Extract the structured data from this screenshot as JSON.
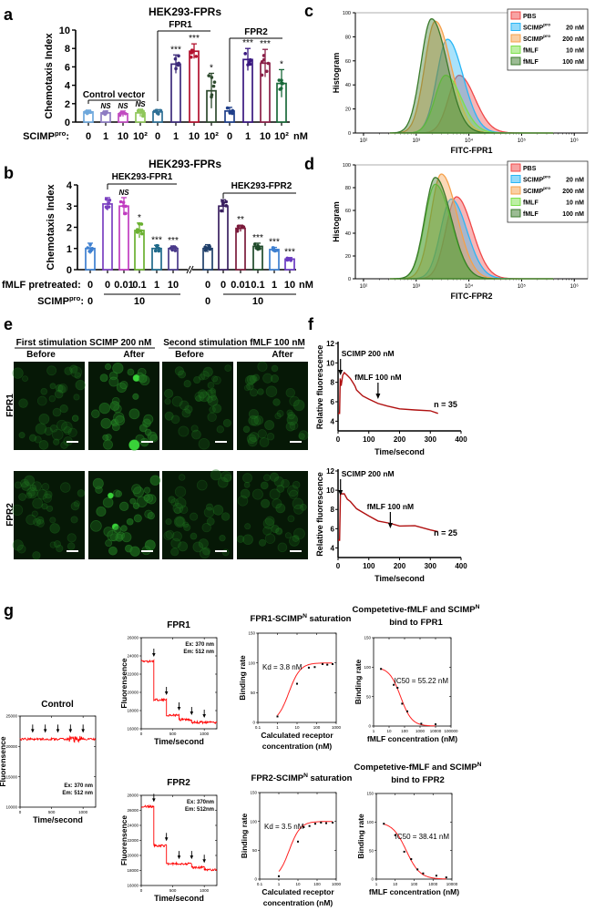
{
  "panels": {
    "a": "a",
    "b": "b",
    "c": "c",
    "d": "d",
    "e": "e",
    "f": "f",
    "g": "g"
  },
  "microscopy": {
    "headers": [
      "First stimulation SCIMP 200 nM",
      "Second stimulation fMLF 100 nM"
    ],
    "columns": [
      "Before",
      "After",
      "Before",
      "After"
    ],
    "rows": [
      "FPR1",
      "FPR2"
    ]
  },
  "chart_data": [
    {
      "id": "a",
      "type": "bar",
      "title": "HEK293-FPRs",
      "ylabel": "Chemotaxis Index",
      "ylim": [
        0,
        10
      ],
      "yticks": [
        0,
        2,
        4,
        6,
        8,
        10
      ],
      "row_label": "SCIMP",
      "row_label_sup": "pro",
      "row_label_end": ":",
      "unit": "nM",
      "categories": [
        "0",
        "1",
        "10",
        "10²",
        "0",
        "1",
        "10",
        "10²",
        "0",
        "1",
        "10",
        "10²"
      ],
      "groups": [
        {
          "label": "Control vector"
        },
        {
          "label": "FPR1"
        },
        {
          "label": "FPR2"
        }
      ],
      "values": [
        1.1,
        1.0,
        0.9,
        1.0,
        1.1,
        6.3,
        7.7,
        3.4,
        1.2,
        6.8,
        6.4,
        4.2
      ],
      "sd": [
        0.2,
        0.2,
        0.3,
        0.4,
        0.25,
        1.0,
        0.8,
        1.9,
        0.4,
        1.2,
        1.5,
        1.5
      ],
      "significance": [
        "",
        "NS",
        "NS",
        "NS",
        "",
        "***",
        "***",
        "*",
        "",
        "***",
        "***",
        "*"
      ],
      "colors": [
        "#6fa8dc",
        "#8e7cc3",
        "#c04bc0",
        "#8fc75a",
        "#2e6f95",
        "#3d2b7a",
        "#b3122e",
        "#2d4a2d",
        "#1f3f8a",
        "#3a1880",
        "#8a2048",
        "#1a6a3a"
      ]
    },
    {
      "id": "b",
      "type": "bar",
      "title": "HEK293-FPRs",
      "ylabel": "Chemotaxis Index",
      "ylim": [
        0,
        4
      ],
      "yticks": [
        0,
        1,
        2,
        3,
        4
      ],
      "groups": [
        {
          "label": "HEK293-FPR1"
        },
        {
          "label": "HEK293-FPR2"
        }
      ],
      "row1_label": "fMLF pretreated:",
      "row1_values": [
        "0",
        "0",
        "0.01",
        "0.1",
        "1",
        "10",
        "0",
        "0",
        "0.01",
        "0.1",
        "1",
        "10"
      ],
      "row2_label": "SCIMP",
      "row2_label_sup": "pro",
      "row2_label_end": ":",
      "row2_values": [
        "0",
        "10",
        "0",
        "10"
      ],
      "unit": "nM",
      "values": [
        1.0,
        3.1,
        3.0,
        1.85,
        1.0,
        1.0,
        1.0,
        3.0,
        1.95,
        1.1,
        0.95,
        0.5
      ],
      "sd": [
        0.25,
        0.3,
        0.4,
        0.35,
        0.15,
        0.12,
        0.18,
        0.3,
        0.15,
        0.15,
        0.1,
        0.07
      ],
      "significance": [
        "",
        "",
        "NS",
        "*",
        "***",
        "***",
        "",
        "",
        "**",
        "***",
        "***",
        "***"
      ],
      "colors": [
        "#3d7fd0",
        "#7a3fc0",
        "#c03cc0",
        "#6ab030",
        "#1f6a8a",
        "#4a3a8a",
        "#1f3f6a",
        "#3a2060",
        "#7a1a3a",
        "#1f4a2a",
        "#3d7fd0",
        "#6a3ac0"
      ]
    },
    {
      "id": "c",
      "type": "area",
      "xlabel": "FITC-FPR1",
      "ylabel": "Histogram",
      "xscale": "log",
      "xlim": [
        70,
        1800000
      ],
      "ylim": [
        0,
        100
      ],
      "yticks": [
        0,
        20,
        40,
        60,
        80,
        100
      ],
      "xticks": [
        100,
        1000,
        10000,
        100000,
        1000000
      ],
      "xtick_labels": [
        "10²",
        "10³",
        "10⁴",
        "10⁵",
        "10⁶"
      ],
      "legend": "top-right",
      "series": [
        {
          "name": "PBS",
          "sup": "",
          "dose": "",
          "mode": 6500,
          "peak": 48,
          "color": "#f04848"
        },
        {
          "name": "SCIMP",
          "sup": "pro",
          "dose": "20 nM",
          "mode": 3900,
          "peak": 78,
          "color": "#29b6f6"
        },
        {
          "name": "SCIMP",
          "sup": "pro",
          "dose": "200 nM",
          "mode": 2300,
          "peak": 93,
          "color": "#f5a04a"
        },
        {
          "name": "fMLF",
          "sup": "",
          "dose": "10 nM",
          "mode": 3600,
          "peak": 48,
          "color": "#7be04a"
        },
        {
          "name": "fMLF",
          "sup": "",
          "dose": "100 nM",
          "mode": 1950,
          "peak": 95,
          "color": "#3a7a2a"
        }
      ]
    },
    {
      "id": "d",
      "type": "area",
      "xlabel": "FITC-FPR2",
      "ylabel": "Histogram",
      "xscale": "log",
      "xlim": [
        70,
        1800000
      ],
      "ylim": [
        0,
        100
      ],
      "yticks": [
        0,
        20,
        40,
        60,
        80,
        100
      ],
      "xticks": [
        100,
        1000,
        10000,
        100000,
        1000000
      ],
      "xtick_labels": [
        "10²",
        "10³",
        "10⁴",
        "10⁵",
        "10⁶"
      ],
      "legend": "top-right",
      "series": [
        {
          "name": "PBS",
          "sup": "",
          "dose": "",
          "mode": 5800,
          "peak": 72,
          "color": "#f04848"
        },
        {
          "name": "SCIMP",
          "sup": "pro",
          "dose": "20 nM",
          "mode": 4600,
          "peak": 70,
          "color": "#29b6f6"
        },
        {
          "name": "SCIMP",
          "sup": "pro",
          "dose": "200 nM",
          "mode": 3000,
          "peak": 92,
          "color": "#f5a04a"
        },
        {
          "name": "fMLF",
          "sup": "",
          "dose": "10 nM",
          "mode": 2300,
          "peak": 83,
          "color": "#7be04a"
        },
        {
          "name": "fMLF",
          "sup": "",
          "dose": "100 nM",
          "mode": 2300,
          "peak": 89,
          "color": "#3a7a2a"
        }
      ]
    },
    {
      "id": "f-top",
      "type": "line",
      "xlabel": "Time/second",
      "ylabel": "Relative fluorescence",
      "xlim": [
        0,
        400
      ],
      "ylim": [
        3,
        12
      ],
      "xticks": [
        0,
        100,
        200,
        300,
        400
      ],
      "yticks": [
        4,
        6,
        8,
        10,
        12
      ],
      "annotations": [
        {
          "text": "SCIMP 200 nM",
          "x": 8
        },
        {
          "text": "fMLF 100 nM",
          "x": 130
        }
      ],
      "n_label": "n = 35",
      "color": "#b01010",
      "points": [
        [
          0,
          4.8
        ],
        [
          5,
          4.8
        ],
        [
          7,
          8.4
        ],
        [
          10,
          7.6
        ],
        [
          15,
          8.8
        ],
        [
          20,
          9.0
        ],
        [
          30,
          8.7
        ],
        [
          40,
          8.3
        ],
        [
          50,
          8.0
        ],
        [
          55,
          7.5
        ],
        [
          60,
          7.2
        ],
        [
          80,
          6.6
        ],
        [
          100,
          6.2
        ],
        [
          130,
          5.8
        ],
        [
          160,
          5.5
        ],
        [
          200,
          5.2
        ],
        [
          250,
          5.05
        ],
        [
          300,
          4.95
        ],
        [
          325,
          4.8
        ]
      ]
    },
    {
      "id": "f-bottom",
      "type": "line",
      "xlabel": "Time/second",
      "ylabel": "Relative fluorescence",
      "xlim": [
        0,
        400
      ],
      "ylim": [
        3,
        12
      ],
      "xticks": [
        0,
        100,
        200,
        300,
        400
      ],
      "yticks": [
        4,
        6,
        8,
        10,
        12
      ],
      "annotations": [
        {
          "text": "SCIMP 200 nM",
          "x": 8
        },
        {
          "text": "fMLF 100 nM",
          "x": 170
        }
      ],
      "n_label": "n = 25",
      "color": "#b01010",
      "points": [
        [
          0,
          4.8
        ],
        [
          5,
          4.8
        ],
        [
          8,
          9.9
        ],
        [
          12,
          9.6
        ],
        [
          20,
          9.7
        ],
        [
          30,
          9.1
        ],
        [
          40,
          8.8
        ],
        [
          60,
          8.2
        ],
        [
          80,
          7.6
        ],
        [
          100,
          7.2
        ],
        [
          130,
          6.9
        ],
        [
          170,
          6.6
        ],
        [
          200,
          6.4
        ],
        [
          250,
          6.25
        ],
        [
          300,
          5.9
        ],
        [
          325,
          5.6
        ]
      ]
    },
    {
      "id": "g-control",
      "type": "line",
      "title": "Control",
      "xlabel": "Time/second",
      "ylabel": "Fluorensence",
      "xlim": [
        0,
        1200
      ],
      "ylim": [
        10000,
        25000
      ],
      "xticks": [
        0,
        500,
        1000
      ],
      "yticks": [
        10000,
        15000,
        20000,
        25000
      ],
      "ex": "Ex:  370 nm",
      "em": "Em: 512 nm",
      "arrows": [
        200,
        400,
        600,
        800,
        1000
      ],
      "steps": [
        [
          0,
          1200,
          21200
        ]
      ],
      "color": "#ff0000"
    },
    {
      "id": "g-fpr1",
      "type": "line",
      "title": "FPR1",
      "xlabel": "Time/second",
      "ylabel": "Fluorensence",
      "xlim": [
        0,
        1200
      ],
      "ylim": [
        16000,
        26000
      ],
      "xticks": [
        0,
        500,
        1000
      ],
      "yticks": [
        16000,
        18000,
        20000,
        22000,
        24000,
        26000
      ],
      "ex": "Ex:  370 nm",
      "em": "Em: 512 nm",
      "arrows": [
        200,
        400,
        600,
        800,
        1000
      ],
      "steps": [
        [
          0,
          200,
          23400
        ],
        [
          200,
          400,
          19200
        ],
        [
          400,
          600,
          17500
        ],
        [
          600,
          800,
          17000
        ],
        [
          800,
          1200,
          16700
        ]
      ],
      "color": "#ff0000"
    },
    {
      "id": "g-fpr2",
      "type": "line",
      "title": "FPR2",
      "xlabel": "Time/second",
      "ylabel": "Fluorensence",
      "xlim": [
        0,
        1200
      ],
      "ylim": [
        16000,
        28000
      ],
      "xticks": [
        0,
        500,
        1000
      ],
      "yticks": [
        16000,
        18000,
        20000,
        22000,
        24000,
        26000,
        28000
      ],
      "ex": "Ex:  370nm",
      "em": "Em: 512nm",
      "arrows": [
        200,
        400,
        600,
        800,
        1000
      ],
      "steps": [
        [
          0,
          200,
          26500
        ],
        [
          200,
          400,
          21300
        ],
        [
          400,
          800,
          18900
        ],
        [
          800,
          1000,
          18400
        ],
        [
          1000,
          1200,
          18100
        ]
      ],
      "color": "#ff0000"
    },
    {
      "id": "g-fpr1-saturation",
      "type": "scatter",
      "title": "FPR1-SCIMP",
      "title_sup": "N",
      "title_end": " saturation",
      "xlabel": "Calculated receptor",
      "xlabel2": "concentration (nM)",
      "ylabel": "Binding rate",
      "xscale": "log",
      "xlim": [
        0.1,
        1000
      ],
      "ylim": [
        0,
        150
      ],
      "xticks": [
        0.1,
        1,
        10,
        100,
        1000
      ],
      "yticks": [
        0,
        50,
        100,
        150
      ],
      "annotation": "Kd = 3.8 nM",
      "kd": 3.8,
      "points": [
        [
          1,
          10
        ],
        [
          10,
          65
        ],
        [
          40,
          92
        ],
        [
          80,
          93
        ],
        [
          200,
          98
        ],
        [
          350,
          97
        ],
        [
          650,
          98
        ]
      ]
    },
    {
      "id": "g-fpr1-competition",
      "type": "scatter",
      "title": "Competetive-fMLF and SCIMP",
      "title_sup": "N",
      "title2": "bind to FPR1",
      "xlabel": "fMLF concentration (nM)",
      "ylabel": "Binding rate",
      "xscale": "log",
      "xlim": [
        1,
        100000
      ],
      "ylim": [
        0,
        150
      ],
      "xticks": [
        1,
        10,
        100,
        1000,
        10000,
        100000
      ],
      "yticks": [
        0,
        50,
        100,
        150
      ],
      "annotation": "IC50 = 55.22 nM",
      "ic50": 55.22,
      "points": [
        [
          3,
          97
        ],
        [
          20,
          70
        ],
        [
          35,
          65
        ],
        [
          70,
          38
        ],
        [
          150,
          25
        ],
        [
          1200,
          4
        ],
        [
          10000,
          3
        ]
      ]
    },
    {
      "id": "g-fpr2-saturation",
      "type": "scatter",
      "title": "FPR2-SCIMP",
      "title_sup": "N",
      "title_end": " saturation",
      "xlabel": "Calculated receptor",
      "xlabel2": "concentration (nM)",
      "ylabel": "Binding rate",
      "xscale": "log",
      "xlim": [
        0.1,
        1000
      ],
      "ylim": [
        0,
        150
      ],
      "xticks": [
        0.1,
        1,
        10,
        100,
        1000
      ],
      "yticks": [
        0,
        50,
        100,
        150
      ],
      "annotation": "Kd = 3.5 nM",
      "kd": 3.5,
      "points": [
        [
          1,
          5
        ],
        [
          10,
          65
        ],
        [
          20,
          90
        ],
        [
          40,
          92
        ],
        [
          80,
          96
        ],
        [
          160,
          98
        ],
        [
          300,
          97
        ],
        [
          650,
          98
        ]
      ]
    },
    {
      "id": "g-fpr2-competition",
      "type": "scatter",
      "title": "Competetive-fMLF and SCIMP",
      "title_sup": "N",
      "title2": "bind to FPR2",
      "xlabel": "fMLF concentration (nM)",
      "ylabel": "Binding rate",
      "xscale": "log",
      "xlim": [
        1,
        10000
      ],
      "ylim": [
        0,
        150
      ],
      "xticks": [
        1,
        10,
        100,
        1000,
        10000
      ],
      "yticks": [
        0,
        50,
        100,
        150
      ],
      "annotation": "IC50 = 38.41 nM",
      "ic50": 38.41,
      "points": [
        [
          2.5,
          97
        ],
        [
          10,
          77
        ],
        [
          30,
          48
        ],
        [
          70,
          35
        ],
        [
          150,
          17
        ],
        [
          300,
          10
        ],
        [
          1500,
          6
        ],
        [
          5000,
          3
        ]
      ]
    }
  ]
}
